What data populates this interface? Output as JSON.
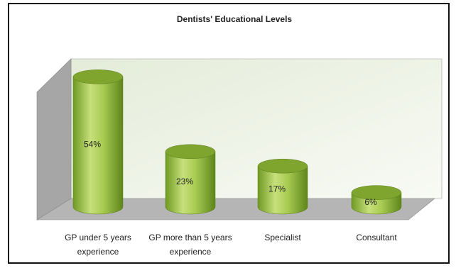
{
  "chart_data": {
    "type": "bar3d",
    "title": "Dentists' Educational Levels",
    "categories": [
      "GP under 5 years experience",
      "GP more than 5 years experience",
      "Specialist",
      "Consultant"
    ],
    "values": [
      54,
      23,
      17,
      6
    ],
    "value_labels": [
      "54%",
      "23%",
      "17%",
      "6%"
    ],
    "color": "#8db33a"
  }
}
